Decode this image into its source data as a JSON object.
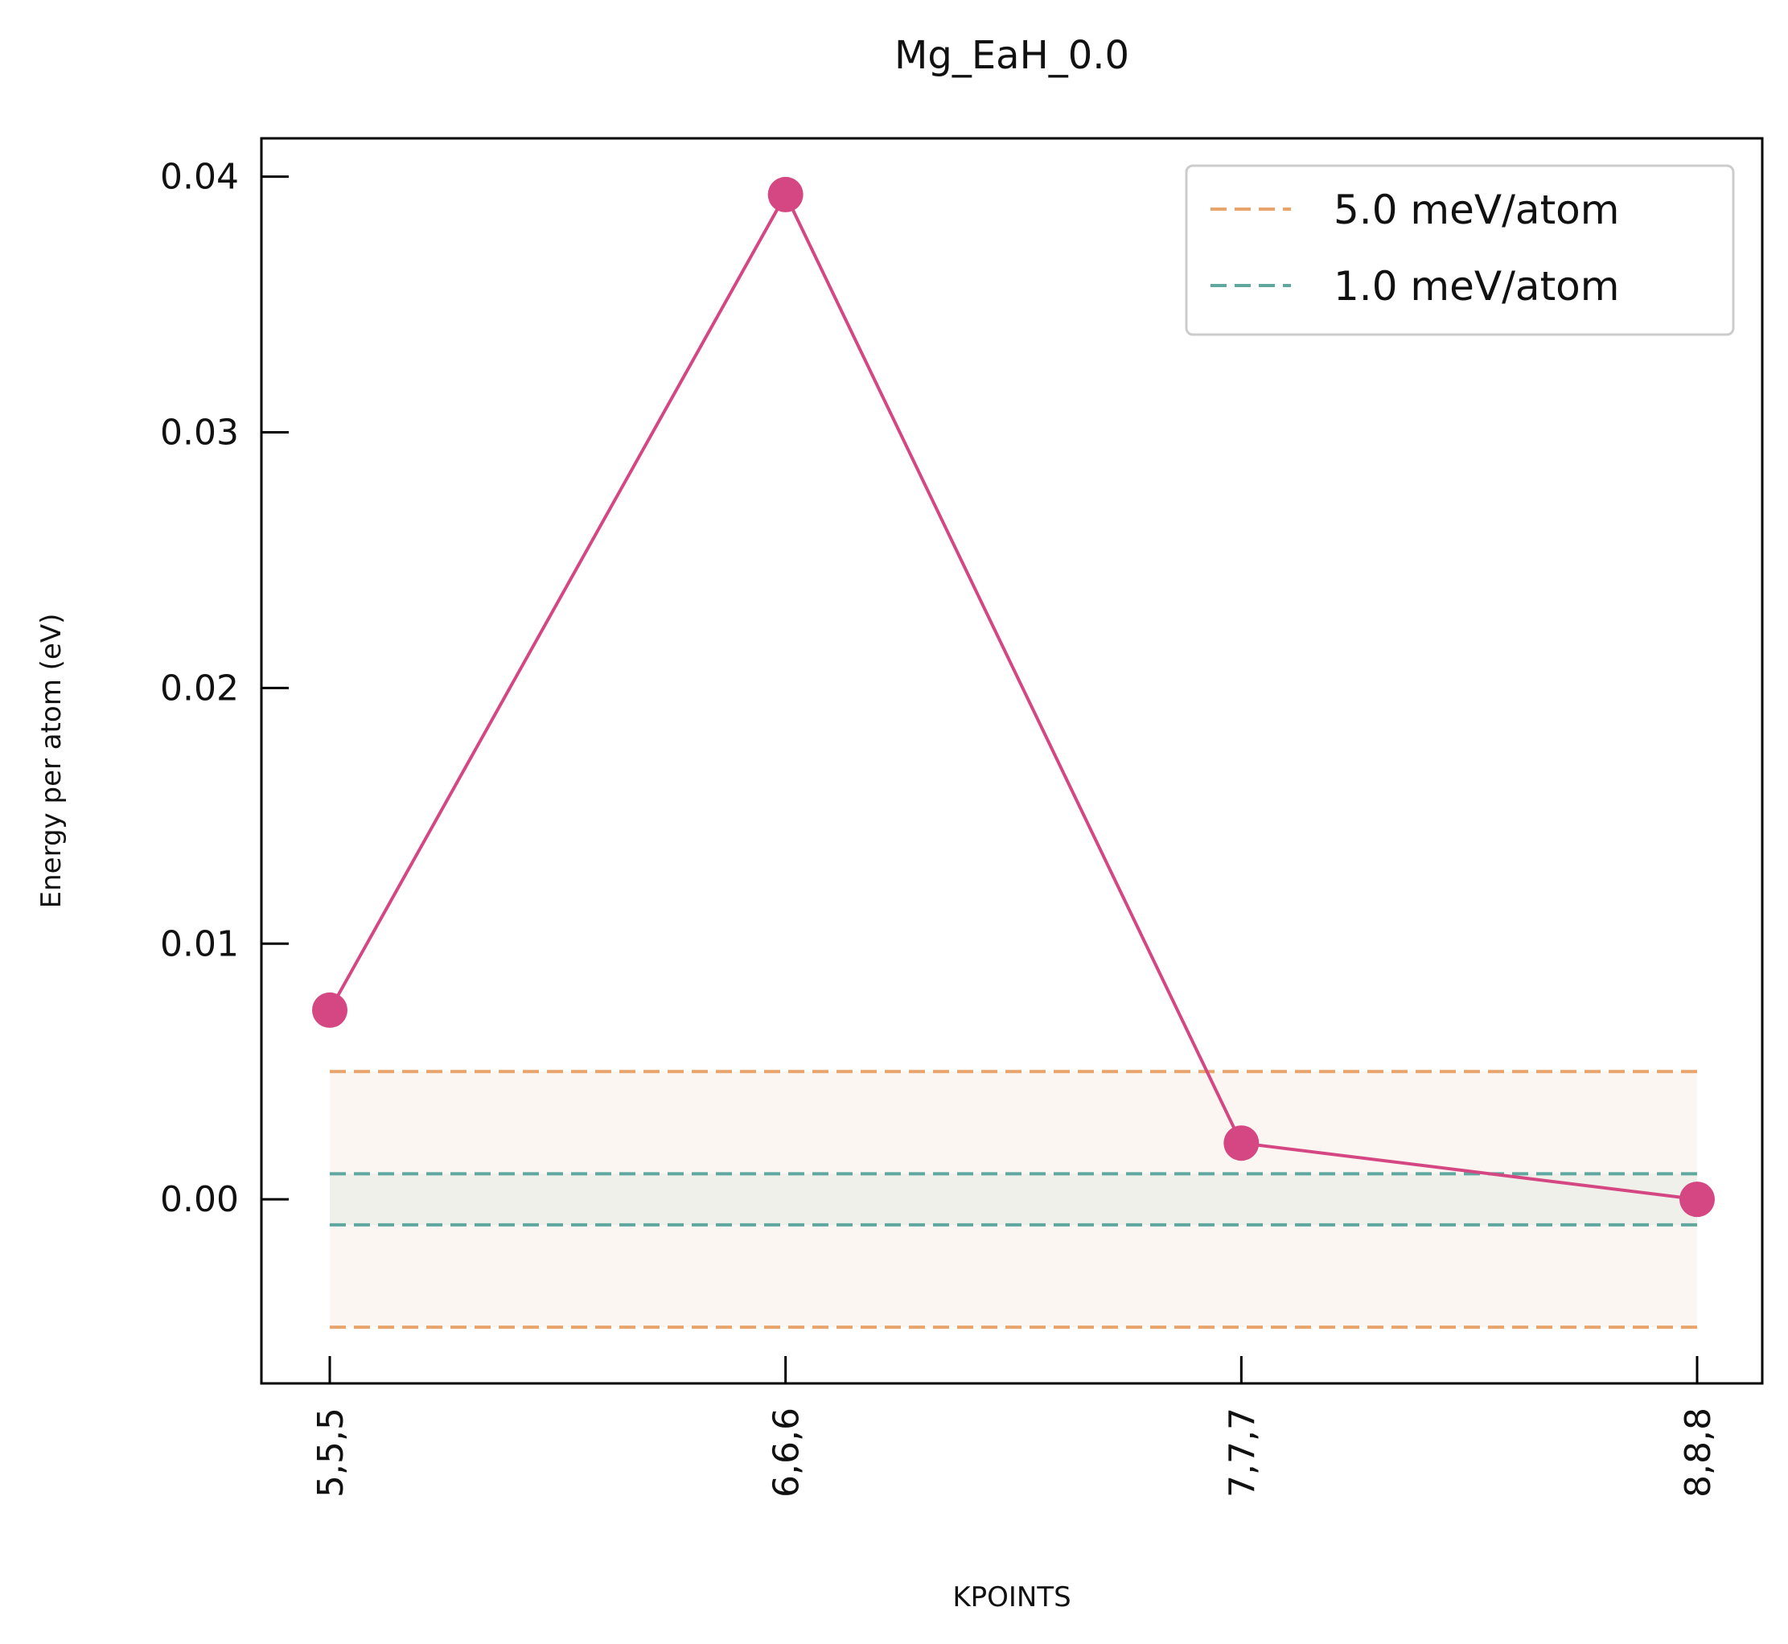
{
  "chart_data": {
    "type": "line",
    "title": "Mg_EaH_0.0",
    "xlabel": "KPOINTS",
    "ylabel": "Energy per atom (eV)",
    "categories": [
      "5,5,5",
      "6,6,6",
      "7,7,7",
      "8,8,8"
    ],
    "series": [
      {
        "values": [
          0.0074,
          0.0393,
          0.0022,
          0.0
        ],
        "color": "#d44782"
      }
    ],
    "ylim": [
      -0.0072,
      0.0415
    ],
    "yticks": [
      0.0,
      0.01,
      0.02,
      0.03,
      0.04
    ],
    "ytick_labels": [
      "0.00",
      "0.01",
      "0.02",
      "0.03",
      "0.04"
    ],
    "bands": [
      {
        "name": "5.0 meV/atom",
        "half_width": 0.005,
        "color": "#e8a46a",
        "fill": "#fbf6f1"
      },
      {
        "name": "1.0 meV/atom",
        "half_width": 0.001,
        "color": "#5fa8a0",
        "fill": "#eff0ea"
      }
    ],
    "legend_position": "top-right",
    "grid": false
  }
}
